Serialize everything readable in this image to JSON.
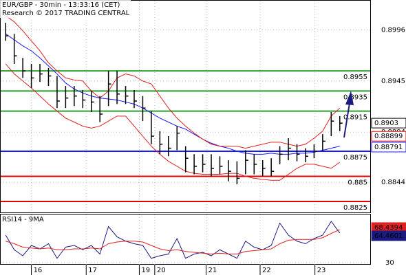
{
  "chart_data": [
    {
      "type": "ohlc",
      "title": "EUR/GBP - 30min - 13:33:16 (CET)",
      "subtitle": "Research © 2017 TRADING CENTRAL",
      "xlim": [
        -0.5,
        39.5
      ],
      "ylim": [
        0.8814,
        0.9025
      ],
      "yticks": [
        0.8996,
        0.8945,
        0.8894,
        0.8844
      ],
      "grid": true,
      "color": "#000000",
      "high": [
        0.9003,
        0.8992,
        0.8968,
        0.8962,
        0.8962,
        0.8958,
        0.895,
        0.894,
        0.894,
        0.8936,
        0.8935,
        0.893,
        0.8955,
        0.8955,
        0.894,
        0.8936,
        0.893,
        0.8915,
        0.8895,
        0.889,
        0.89,
        0.888,
        0.8872,
        0.8872,
        0.8872,
        0.887,
        0.8866,
        0.8865,
        0.8876,
        0.8872,
        0.8866,
        0.8868,
        0.888,
        0.8888,
        0.8882,
        0.8878,
        0.8882,
        0.8892,
        0.8914,
        0.891
      ],
      "low": [
        0.8985,
        0.8962,
        0.8948,
        0.8938,
        0.8944,
        0.894,
        0.8918,
        0.8918,
        0.892,
        0.8918,
        0.8914,
        0.8904,
        0.892,
        0.8922,
        0.8922,
        0.8918,
        0.8905,
        0.8882,
        0.8872,
        0.887,
        0.8876,
        0.8854,
        0.8852,
        0.8854,
        0.885,
        0.8852,
        0.8845,
        0.8842,
        0.8852,
        0.8852,
        0.885,
        0.885,
        0.8862,
        0.8866,
        0.8865,
        0.8864,
        0.8868,
        0.8875,
        0.889,
        0.8895
      ],
      "close": [
        0.899,
        0.897,
        0.8955,
        0.8948,
        0.8952,
        0.895,
        0.8925,
        0.8928,
        0.893,
        0.8926,
        0.8924,
        0.8912,
        0.8942,
        0.8932,
        0.893,
        0.8925,
        0.8918,
        0.889,
        0.8882,
        0.8878,
        0.8893,
        0.8868,
        0.886,
        0.8862,
        0.8858,
        0.886,
        0.8855,
        0.8848,
        0.8866,
        0.8862,
        0.8858,
        0.8855,
        0.8872,
        0.8878,
        0.8872,
        0.887,
        0.8875,
        0.8885,
        0.8905,
        0.8903
      ],
      "overlays": [
        {
          "color": "#1a1aff",
          "values": [
            0.8992,
            0.8986,
            0.898,
            0.8975,
            0.8968,
            0.896,
            0.8952,
            0.8943,
            0.8937,
            0.8933,
            0.893,
            0.8928,
            0.8927,
            0.8926,
            0.8924,
            0.8922,
            0.8918,
            0.8913,
            0.8908,
            0.8904,
            0.89,
            0.8897,
            0.8892,
            0.8887,
            0.8883,
            0.888,
            0.8878,
            0.8875,
            0.8873,
            0.8872,
            0.8872,
            0.8873,
            0.8872,
            0.8872,
            0.8873,
            0.8873,
            0.8874,
            0.8876,
            0.8878,
            0.888
          ]
        },
        {
          "color": "#e02020",
          "values": [
            0.901,
            0.9004,
            0.8995,
            0.8985,
            0.8975,
            0.8963,
            0.8955,
            0.8948,
            0.8946,
            0.8945,
            0.8935,
            0.8928,
            0.8935,
            0.8948,
            0.8952,
            0.895,
            0.8945,
            0.8942,
            0.893,
            0.8918,
            0.8908,
            0.89,
            0.8893,
            0.8887,
            0.8882,
            0.888,
            0.888,
            0.888,
            0.8878,
            0.888,
            0.8882,
            0.8884,
            0.8884,
            0.8882,
            0.888,
            0.8882,
            0.8888,
            0.8895,
            0.891,
            0.8918
          ]
        },
        {
          "color": "#e02020",
          "values": [
            0.8962,
            0.8952,
            0.8945,
            0.8938,
            0.893,
            0.8922,
            0.8915,
            0.8908,
            0.8904,
            0.89,
            0.8898,
            0.89,
            0.8905,
            0.891,
            0.891,
            0.89,
            0.889,
            0.888,
            0.8872,
            0.8865,
            0.886,
            0.8855,
            0.8853,
            0.8852,
            0.8852,
            0.8852,
            0.8853,
            0.8853,
            0.885,
            0.8848,
            0.8847,
            0.8846,
            0.8846,
            0.8852,
            0.8858,
            0.8862,
            0.8862,
            0.886,
            0.8858,
            0.8864
          ]
        }
      ],
      "levels": [
        {
          "value": 0.8955,
          "color": "#2e9c2e"
        },
        {
          "value": 0.8935,
          "color": "#2e9c2e"
        },
        {
          "value": 0.8915,
          "color": "#2e9c2e"
        },
        {
          "value": 0.8875,
          "color": "#1a1aff"
        },
        {
          "value": 0.885,
          "color": "#e00000"
        },
        {
          "value": 0.8825,
          "color": "#e00000"
        }
      ],
      "price_labels": [
        {
          "value": 0.88899,
          "color": "#e00000"
        },
        {
          "value": 0.88791,
          "color": "#1a1aff"
        }
      ]
    },
    {
      "type": "line",
      "title": "RSI14 - 9MA",
      "xlim": [
        -0.5,
        39.5
      ],
      "ylim": [
        19.6,
        86
      ],
      "yticks": [
        30
      ],
      "grid": true,
      "xticks": [
        {
          "value": 3,
          "label": "16"
        },
        {
          "value": 9.4,
          "label": "17"
        },
        {
          "value": 15.6,
          "label": "19"
        },
        {
          "value": 17.4,
          "label": "20"
        },
        {
          "value": 23.4,
          "label": "21"
        },
        {
          "value": 29.7,
          "label": "22"
        },
        {
          "value": 36.1,
          "label": "23"
        }
      ],
      "series": [
        {
          "color": "#1a1a80",
          "values": [
            62,
            45,
            38,
            50,
            46,
            52,
            35,
            48,
            50,
            45,
            50,
            40,
            72,
            60,
            55,
            52,
            50,
            35,
            38,
            40,
            58,
            35,
            40,
            42,
            38,
            45,
            40,
            35,
            55,
            48,
            45,
            50,
            76,
            62,
            55,
            52,
            58,
            62,
            78,
            64.4601
          ]
        },
        {
          "color": "#e02020",
          "values": [
            55,
            52,
            48,
            47,
            46,
            47,
            45,
            45,
            46,
            46,
            47,
            46,
            52,
            54,
            55,
            55,
            54,
            50,
            46,
            44,
            45,
            43,
            42,
            41,
            40,
            41,
            40,
            40,
            43,
            44,
            45,
            46,
            52,
            56,
            57,
            57,
            57,
            59,
            64,
            68.4394
          ]
        }
      ]
    }
  ]
}
